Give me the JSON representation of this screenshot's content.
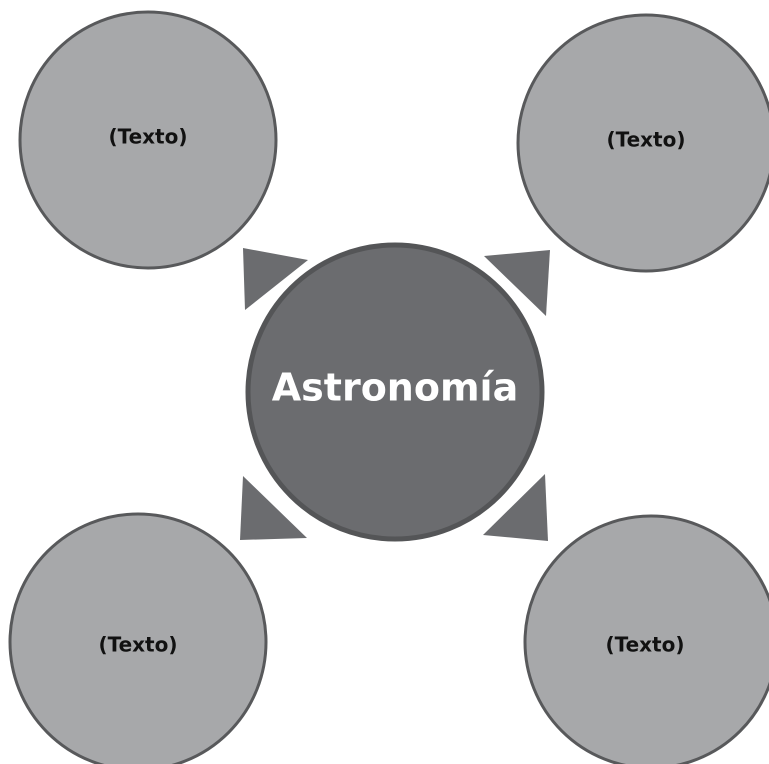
{
  "center": {
    "label": "Astronomía"
  },
  "nodes": [
    {
      "label": "(Texto)"
    },
    {
      "label": "(Texto)"
    },
    {
      "label": "(Texto)"
    },
    {
      "label": "(Texto)"
    }
  ]
}
